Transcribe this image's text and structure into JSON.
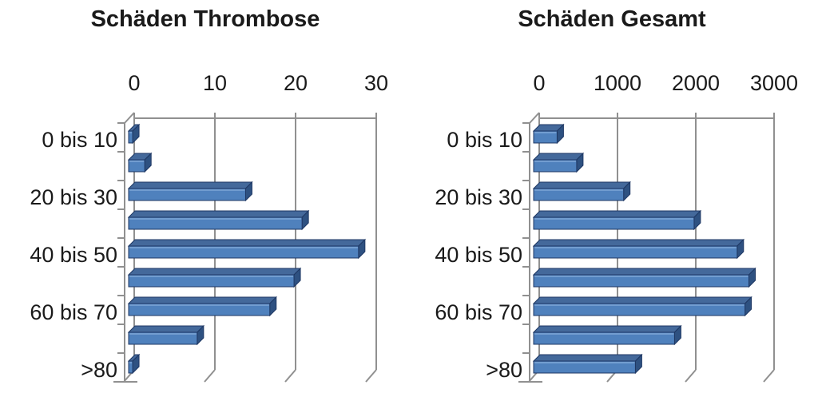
{
  "figure": {
    "background": "#ffffff",
    "description_left_title": "Schäden Thrombose",
    "description_right_title": "Schäden Gesamt"
  },
  "colors": {
    "bar_front": "#4f81bd",
    "bar_top_face": "#44699b",
    "bar_side_face": "#2e5181",
    "bar_edge": "#1f3864",
    "bar_highlight": "#84abda",
    "grid": "#909090",
    "text": "#1a1a1a",
    "background": "#ffffff"
  },
  "chart_data": [
    {
      "type": "bar",
      "orientation": "horizontal",
      "style": "3d",
      "title": "Schäden Thrombose",
      "categories": [
        "0 bis 10",
        "",
        "20 bis 30",
        "",
        "40 bis 50",
        "",
        "60 bis 70",
        "",
        ">80"
      ],
      "values": [
        0.5,
        2,
        14.5,
        21.5,
        28.5,
        20.5,
        17.5,
        8.5,
        0.5
      ],
      "x_ticks": [
        0,
        10,
        20,
        30
      ],
      "x_tick_labels": [
        "0",
        "10",
        "20",
        "30"
      ],
      "xlim": [
        0,
        30
      ],
      "xlabel": "",
      "ylabel": "",
      "grid": true,
      "legend": false,
      "bar_color": "#4f81bd"
    },
    {
      "type": "bar",
      "orientation": "horizontal",
      "style": "3d",
      "title": "Schäden Gesamt",
      "categories": [
        "0 bis 10",
        "",
        "20 bis 30",
        "",
        "40 bis 50",
        "",
        "60 bis 70",
        "",
        ">80"
      ],
      "values": [
        300,
        550,
        1150,
        2050,
        2600,
        2750,
        2700,
        1800,
        1300
      ],
      "x_ticks": [
        0,
        1000,
        2000,
        3000
      ],
      "x_tick_labels": [
        "0",
        "1000",
        "2000",
        "3000"
      ],
      "xlim": [
        0,
        3000
      ],
      "xlabel": "",
      "ylabel": "",
      "grid": true,
      "legend": false,
      "bar_color": "#4f81bd"
    }
  ]
}
